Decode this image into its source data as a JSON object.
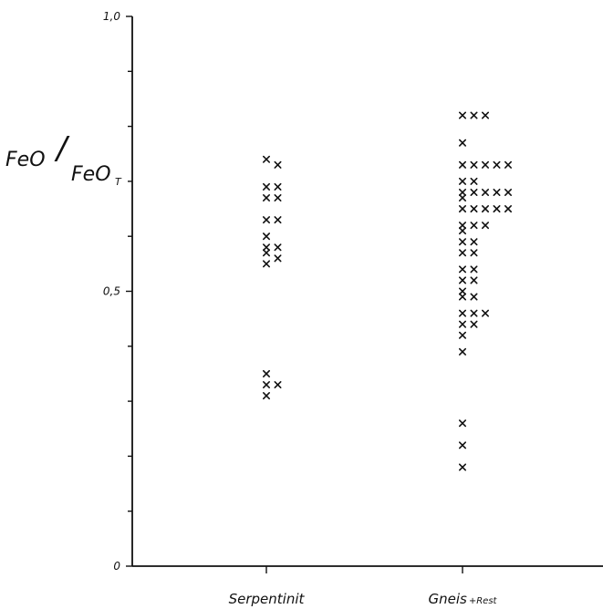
{
  "chart_data": {
    "type": "scatter",
    "title": "",
    "ylabel": "FeO/FeOT",
    "ylabel_parts": {
      "main": "FeO",
      "denominator": "FeO",
      "subscript": "T"
    },
    "xlabel": "",
    "ylim": [
      0,
      1.0
    ],
    "y_tick_labels": [
      {
        "value": 1.0,
        "label": "1,0"
      },
      {
        "value": 0.5,
        "label": "0,5"
      },
      {
        "value": 0.0,
        "label": "0"
      }
    ],
    "y_minor_ticks": [
      0.1,
      0.2,
      0.3,
      0.4,
      0.6,
      0.7,
      0.8,
      0.9
    ],
    "categories": [
      "Serpentinit",
      "Gneis+Rest"
    ],
    "category_labels": [
      {
        "main": "Serpentinit",
        "suffix": ""
      },
      {
        "main": "Gneis",
        "suffix": "+Rest"
      }
    ],
    "grid": false,
    "marker": "x",
    "series": [
      {
        "category": "Serpentinit",
        "points": [
          {
            "offset": 0,
            "y": 0.74
          },
          {
            "offset": 1,
            "y": 0.73
          },
          {
            "offset": 0,
            "y": 0.69
          },
          {
            "offset": 1,
            "y": 0.69
          },
          {
            "offset": 0,
            "y": 0.67
          },
          {
            "offset": 1,
            "y": 0.67
          },
          {
            "offset": 0,
            "y": 0.63
          },
          {
            "offset": 1,
            "y": 0.63
          },
          {
            "offset": 0,
            "y": 0.6
          },
          {
            "offset": 0,
            "y": 0.58
          },
          {
            "offset": 1,
            "y": 0.58
          },
          {
            "offset": 0,
            "y": 0.57
          },
          {
            "offset": 0,
            "y": 0.55
          },
          {
            "offset": 1,
            "y": 0.56
          },
          {
            "offset": 0,
            "y": 0.35
          },
          {
            "offset": 0,
            "y": 0.33
          },
          {
            "offset": 1,
            "y": 0.33
          },
          {
            "offset": 0,
            "y": 0.31
          }
        ]
      },
      {
        "category": "Gneis+Rest",
        "points": [
          {
            "offset": 0,
            "y": 0.82
          },
          {
            "offset": 1,
            "y": 0.82
          },
          {
            "offset": 2,
            "y": 0.82
          },
          {
            "offset": 0,
            "y": 0.77
          },
          {
            "offset": 0,
            "y": 0.73
          },
          {
            "offset": 1,
            "y": 0.73
          },
          {
            "offset": 2,
            "y": 0.73
          },
          {
            "offset": 3,
            "y": 0.73
          },
          {
            "offset": 4,
            "y": 0.73
          },
          {
            "offset": 0,
            "y": 0.7
          },
          {
            "offset": 1,
            "y": 0.7
          },
          {
            "offset": 0,
            "y": 0.68
          },
          {
            "offset": 1,
            "y": 0.68
          },
          {
            "offset": 2,
            "y": 0.68
          },
          {
            "offset": 3,
            "y": 0.68
          },
          {
            "offset": 4,
            "y": 0.68
          },
          {
            "offset": 0,
            "y": 0.67
          },
          {
            "offset": 0,
            "y": 0.65
          },
          {
            "offset": 1,
            "y": 0.65
          },
          {
            "offset": 2,
            "y": 0.65
          },
          {
            "offset": 3,
            "y": 0.65
          },
          {
            "offset": 4,
            "y": 0.65
          },
          {
            "offset": 0,
            "y": 0.62
          },
          {
            "offset": 1,
            "y": 0.62
          },
          {
            "offset": 2,
            "y": 0.62
          },
          {
            "offset": 0,
            "y": 0.61
          },
          {
            "offset": 0,
            "y": 0.59
          },
          {
            "offset": 1,
            "y": 0.59
          },
          {
            "offset": 0,
            "y": 0.57
          },
          {
            "offset": 1,
            "y": 0.57
          },
          {
            "offset": 0,
            "y": 0.54
          },
          {
            "offset": 1,
            "y": 0.54
          },
          {
            "offset": 0,
            "y": 0.52
          },
          {
            "offset": 1,
            "y": 0.52
          },
          {
            "offset": 0,
            "y": 0.5
          },
          {
            "offset": 0,
            "y": 0.49
          },
          {
            "offset": 1,
            "y": 0.49
          },
          {
            "offset": 0,
            "y": 0.46
          },
          {
            "offset": 1,
            "y": 0.46
          },
          {
            "offset": 2,
            "y": 0.46
          },
          {
            "offset": 0,
            "y": 0.44
          },
          {
            "offset": 1,
            "y": 0.44
          },
          {
            "offset": 0,
            "y": 0.42
          },
          {
            "offset": 0,
            "y": 0.39
          },
          {
            "offset": 0,
            "y": 0.26
          },
          {
            "offset": 0,
            "y": 0.22
          },
          {
            "offset": 0,
            "y": 0.18
          }
        ]
      }
    ]
  }
}
